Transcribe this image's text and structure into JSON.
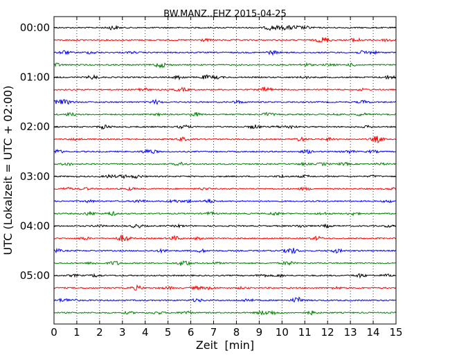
{
  "chart_data": {
    "type": "line",
    "title": "BW.MANZ..EHZ 2015-04-25",
    "xlabel": "Zeit  [min]",
    "ylabel": "UTC (Lokalzeit = UTC + 02:00)",
    "xlim": [
      0,
      15
    ],
    "x_ticks": [
      0,
      1,
      2,
      3,
      4,
      5,
      6,
      7,
      8,
      9,
      10,
      11,
      12,
      13,
      14,
      15
    ],
    "x_grid": "dotted vertical lines at each minute",
    "y_tick_labels": [
      "00:00",
      "01:00",
      "02:00",
      "03:00",
      "04:00",
      "05:00"
    ],
    "trace_interval_minutes": 15,
    "trace_start_times": [
      "00:00",
      "00:15",
      "00:30",
      "00:45",
      "01:00",
      "01:15",
      "01:30",
      "01:45",
      "02:00",
      "02:15",
      "02:30",
      "02:45",
      "03:00",
      "03:15",
      "03:30",
      "03:45",
      "04:00",
      "04:15",
      "04:30",
      "04:45",
      "05:00",
      "05:15",
      "05:30",
      "05:45"
    ],
    "color_cycle": [
      "#000000",
      "#ff0000",
      "#0000ff",
      "#008000"
    ],
    "series_type": "seismogram traces (noise-level amplitude, one trace per 15 minutes)"
  }
}
